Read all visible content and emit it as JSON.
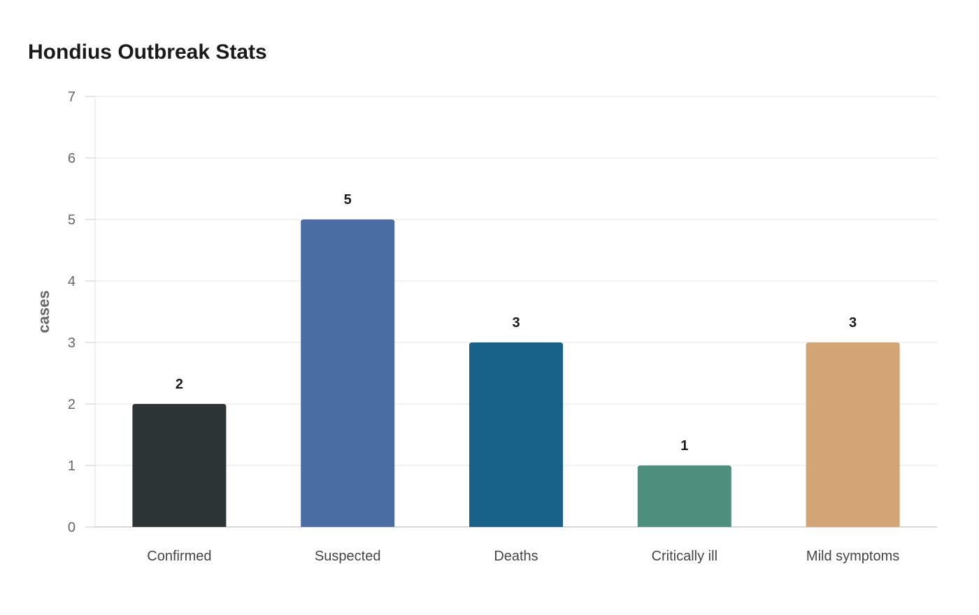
{
  "chart_data": {
    "type": "bar",
    "title": "Hondius Outbreak Stats",
    "xlabel": "",
    "ylabel": "cases",
    "ylim": [
      0,
      7
    ],
    "yticks": [
      0,
      1,
      2,
      3,
      4,
      5,
      6,
      7
    ],
    "categories": [
      "Confirmed",
      "Suspected",
      "Deaths",
      "Critically ill",
      "Mild symptoms"
    ],
    "values": [
      2,
      5,
      3,
      1,
      3
    ],
    "colors": [
      "#2d3436",
      "#4a6da3",
      "#186189",
      "#4e8e7c",
      "#d3a574"
    ],
    "grid": true,
    "legend": "none"
  }
}
